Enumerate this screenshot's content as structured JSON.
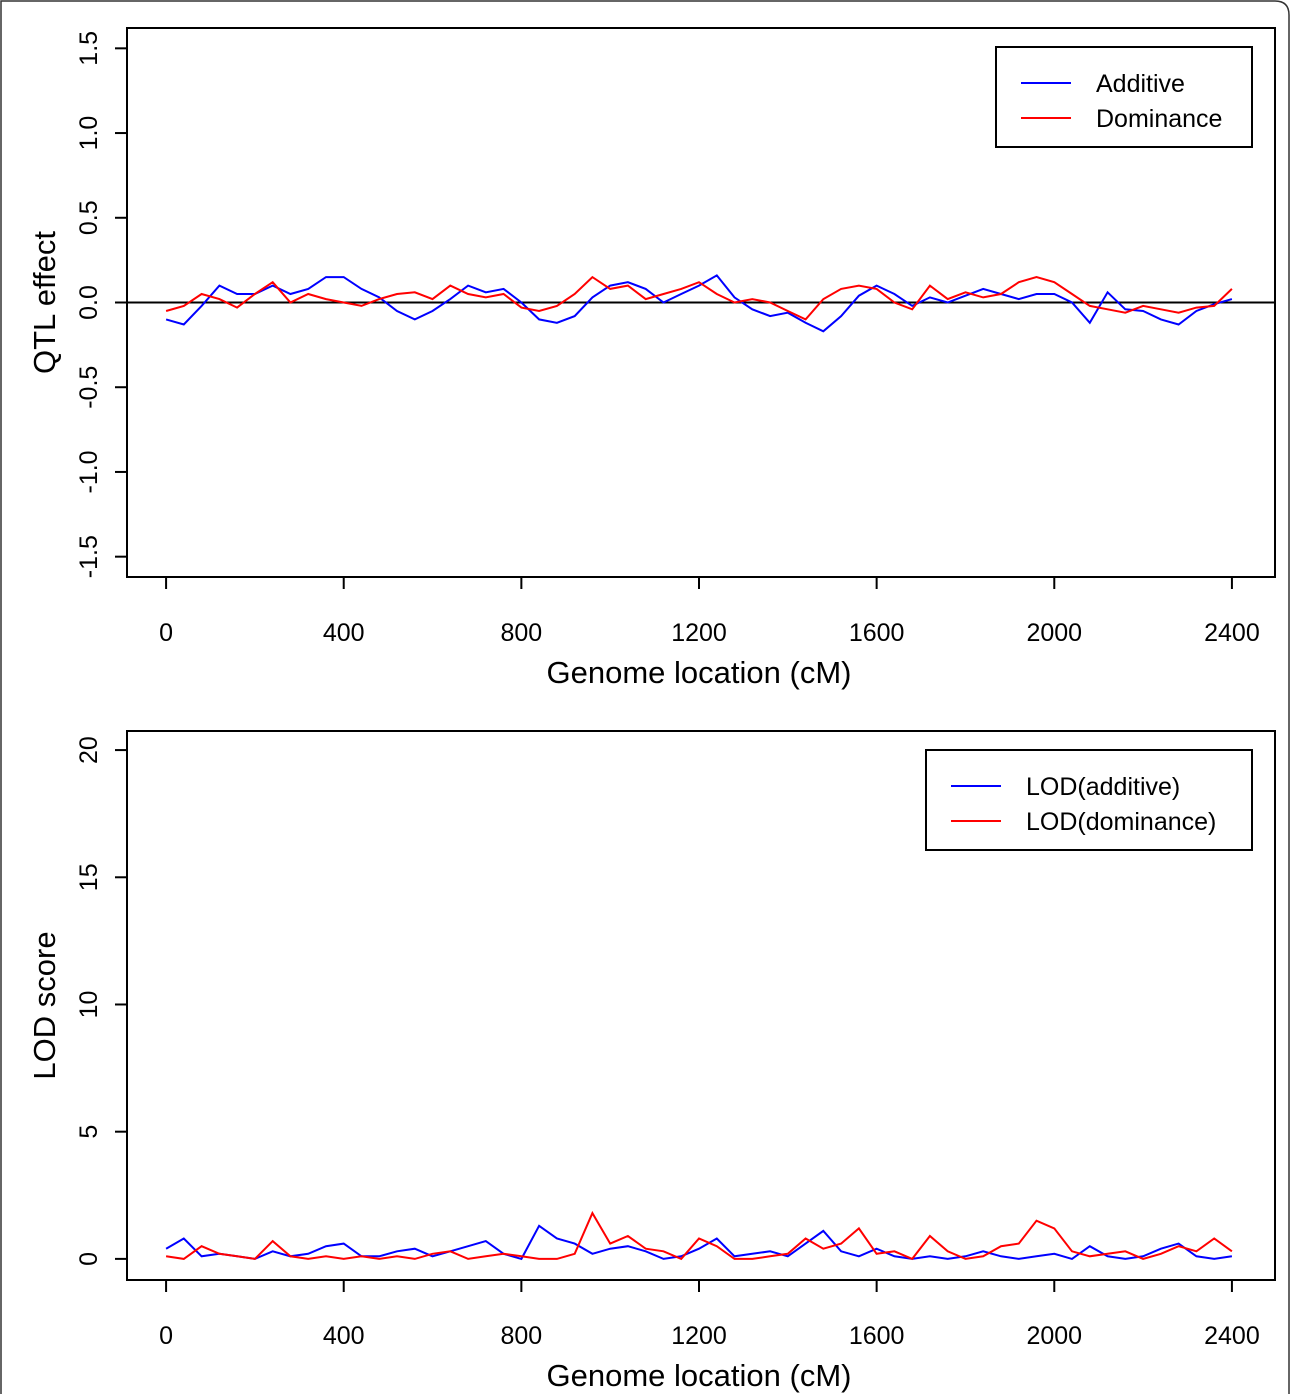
{
  "chart_data": [
    {
      "type": "line",
      "ylabel": "QTL effect",
      "xlabel": "Genome location (cM)",
      "x": [
        0,
        40,
        80,
        120,
        160,
        200,
        240,
        280,
        320,
        360,
        400,
        440,
        480,
        520,
        560,
        600,
        640,
        680,
        720,
        760,
        800,
        840,
        880,
        920,
        960,
        1000,
        1040,
        1080,
        1120,
        1160,
        1200,
        1240,
        1280,
        1320,
        1360,
        1400,
        1440,
        1480,
        1520,
        1560,
        1600,
        1640,
        1680,
        1720,
        1760,
        1800,
        1840,
        1880,
        1920,
        1960,
        2000,
        2040,
        2080,
        2120,
        2160,
        2200,
        2240,
        2280,
        2320,
        2360,
        2400
      ],
      "series": [
        {
          "name": "Additive",
          "color": "#0000ff",
          "values": [
            -0.1,
            -0.13,
            -0.02,
            0.1,
            0.05,
            0.05,
            0.1,
            0.05,
            0.08,
            0.15,
            0.15,
            0.08,
            0.03,
            -0.05,
            -0.1,
            -0.05,
            0.02,
            0.1,
            0.06,
            0.08,
            0.0,
            -0.1,
            -0.12,
            -0.08,
            0.03,
            0.1,
            0.12,
            0.08,
            0.0,
            0.05,
            0.1,
            0.16,
            0.03,
            -0.04,
            -0.08,
            -0.06,
            -0.12,
            -0.17,
            -0.08,
            0.04,
            0.1,
            0.05,
            -0.02,
            0.03,
            0.0,
            0.04,
            0.08,
            0.05,
            0.02,
            0.05,
            0.05,
            0.0,
            -0.12,
            0.06,
            -0.04,
            -0.05,
            -0.1,
            -0.13,
            -0.05,
            -0.01,
            0.02
          ]
        },
        {
          "name": "Dominance",
          "color": "#ff0000",
          "values": [
            -0.05,
            -0.02,
            0.05,
            0.02,
            -0.03,
            0.05,
            0.12,
            0.0,
            0.05,
            0.02,
            0.0,
            -0.02,
            0.02,
            0.05,
            0.06,
            0.02,
            0.1,
            0.05,
            0.03,
            0.05,
            -0.03,
            -0.05,
            -0.02,
            0.05,
            0.15,
            0.08,
            0.1,
            0.02,
            0.05,
            0.08,
            0.12,
            0.05,
            0.0,
            0.02,
            0.0,
            -0.05,
            -0.1,
            0.02,
            0.08,
            0.1,
            0.08,
            0.0,
            -0.04,
            0.1,
            0.02,
            0.06,
            0.03,
            0.05,
            0.12,
            0.15,
            0.12,
            0.05,
            -0.02,
            -0.04,
            -0.06,
            -0.02,
            -0.04,
            -0.06,
            -0.03,
            -0.02,
            0.08
          ]
        }
      ],
      "xlim": [
        -88,
        2497
      ],
      "xticks": [
        0,
        400,
        800,
        1200,
        1600,
        2000,
        2400
      ],
      "ylim": [
        -1.62,
        1.62
      ],
      "yticks": [
        -1.5,
        {
          "value": -1,
          "label": "-1.0"
        },
        -0.5,
        {
          "value": 0,
          "label": "0.0"
        },
        0.5,
        {
          "value": 1,
          "label": "1.0"
        },
        1.5
      ],
      "hline": 0,
      "legend": "upper right"
    },
    {
      "type": "line",
      "ylabel": "LOD score",
      "xlabel": "Genome location (cM)",
      "x": [
        0,
        40,
        80,
        120,
        160,
        200,
        240,
        280,
        320,
        360,
        400,
        440,
        480,
        520,
        560,
        600,
        640,
        680,
        720,
        760,
        800,
        840,
        880,
        920,
        960,
        1000,
        1040,
        1080,
        1120,
        1160,
        1200,
        1240,
        1280,
        1320,
        1360,
        1400,
        1440,
        1480,
        1520,
        1560,
        1600,
        1640,
        1680,
        1720,
        1760,
        1800,
        1840,
        1880,
        1920,
        1960,
        2000,
        2040,
        2080,
        2120,
        2160,
        2200,
        2240,
        2280,
        2320,
        2360,
        2400
      ],
      "series": [
        {
          "name": "LOD(additive)",
          "color": "#0000ff",
          "values": [
            0.4,
            0.8,
            0.1,
            0.2,
            0.1,
            0.0,
            0.3,
            0.1,
            0.2,
            0.5,
            0.6,
            0.1,
            0.1,
            0.3,
            0.4,
            0.1,
            0.3,
            0.5,
            0.7,
            0.2,
            0.0,
            1.3,
            0.8,
            0.6,
            0.2,
            0.4,
            0.5,
            0.3,
            0.0,
            0.1,
            0.4,
            0.8,
            0.1,
            0.2,
            0.3,
            0.1,
            0.6,
            1.1,
            0.3,
            0.1,
            0.4,
            0.1,
            0.0,
            0.1,
            0.0,
            0.1,
            0.3,
            0.1,
            0.0,
            0.1,
            0.2,
            0.0,
            0.5,
            0.1,
            0.0,
            0.1,
            0.4,
            0.6,
            0.1,
            0.0,
            0.1
          ]
        },
        {
          "name": "LOD(dominance)",
          "color": "#ff0000",
          "values": [
            0.1,
            0.0,
            0.5,
            0.2,
            0.1,
            0.0,
            0.7,
            0.1,
            0.0,
            0.1,
            0.0,
            0.1,
            0.0,
            0.1,
            0.0,
            0.2,
            0.3,
            0.0,
            0.1,
            0.2,
            0.1,
            0.0,
            0.0,
            0.2,
            1.8,
            0.6,
            0.9,
            0.4,
            0.3,
            0.0,
            0.8,
            0.5,
            0.0,
            0.0,
            0.1,
            0.2,
            0.8,
            0.4,
            0.6,
            1.2,
            0.2,
            0.3,
            0.0,
            0.9,
            0.3,
            0.0,
            0.1,
            0.5,
            0.6,
            1.5,
            1.2,
            0.3,
            0.1,
            0.2,
            0.3,
            0.0,
            0.2,
            0.5,
            0.3,
            0.8,
            0.3
          ]
        }
      ],
      "xlim": [
        -88,
        2497
      ],
      "xticks": [
        0,
        400,
        800,
        1200,
        1600,
        2000,
        2400
      ],
      "ylim": [
        -0.83,
        20.75
      ],
      "yticks": [
        0,
        5,
        10,
        15,
        20
      ],
      "legend": "upper right"
    }
  ]
}
